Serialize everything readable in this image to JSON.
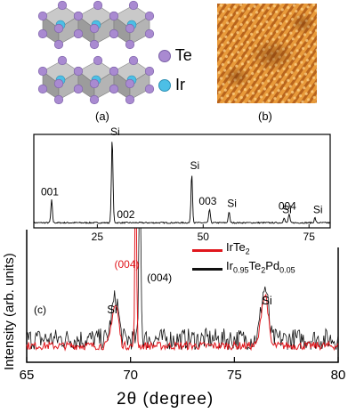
{
  "panels": {
    "a_label": "(a)",
    "b_label": "(b)",
    "c_label": "(c)"
  },
  "legend_atoms": [
    {
      "label": "Te",
      "color": "#a98ad1"
    },
    {
      "label": "Ir",
      "color": "#4cbfe6"
    }
  ],
  "chart_data": [
    {
      "type": "line",
      "panel": "inset",
      "xlim": [
        10,
        80
      ],
      "xticks": [
        25,
        50,
        75
      ],
      "grid": false,
      "peaks": [
        {
          "x": 14.2,
          "height": 0.27,
          "label": "001"
        },
        {
          "x": 28.5,
          "height": 0.98,
          "label": "Si"
        },
        {
          "x": 28.8,
          "height": 0.05,
          "label": "002"
        },
        {
          "x": 47.3,
          "height": 0.58,
          "label": "Si"
        },
        {
          "x": 51.5,
          "height": 0.16,
          "label": "003"
        },
        {
          "x": 56.1,
          "height": 0.13,
          "label": "Si"
        },
        {
          "x": 69.1,
          "height": 0.06,
          "label": "Si"
        },
        {
          "x": 70.3,
          "height": 0.1,
          "label": "004"
        },
        {
          "x": 76.4,
          "height": 0.06,
          "label": "Si"
        }
      ]
    },
    {
      "type": "line",
      "panel": "main",
      "xlabel": "2θ (degree)",
      "ylabel": "Intensity (arb. units)",
      "xlim": [
        65,
        80
      ],
      "xticks": [
        65,
        70,
        75,
        80
      ],
      "grid": false,
      "legend_position": "top-right",
      "series": [
        {
          "name": "IrTe₂",
          "color": "#e0171d",
          "main_peak": 70.25,
          "peak_label": "(004)",
          "si_peaks": [
            69.2,
            76.4
          ]
        },
        {
          "name": "Ir₀.₉₅Te₂Pd₀.₀₅",
          "color": "#111111",
          "main_peak": 70.45,
          "peak_label": "(004)",
          "si_peaks": [
            69.2,
            76.4
          ]
        }
      ],
      "annotations": [
        {
          "x": 69.2,
          "text": "Si"
        },
        {
          "x": 76.4,
          "text": "Si"
        }
      ]
    }
  ],
  "legend_text": {
    "s1_base": "IrTe",
    "s1_sub": "2",
    "s2_a": "Ir",
    "s2_sub1": "0.95",
    "s2_b": "Te",
    "s2_sub2": "2",
    "s2_c": "Pd",
    "s2_sub3": "0.05"
  }
}
